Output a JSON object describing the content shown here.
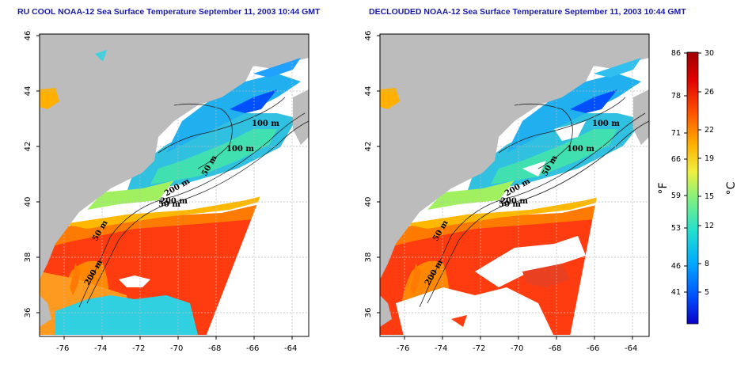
{
  "panels": [
    {
      "title": "RU COOL NOAA-12 Sea Surface Temperature September 11, 2003 10:44 GMT",
      "contour_labels": [
        "100 m",
        "100 m",
        "50 m",
        "200 m",
        "50 m",
        "200 m",
        "50 m",
        "200 m"
      ]
    },
    {
      "title": "DECLOUDED NOAA-12 Sea Surface Temperature September 11, 2003 10:44 GMT",
      "contour_labels": [
        "100 m",
        "100 m",
        "50 m",
        "200 m",
        "50 m",
        "200 m",
        "50 m",
        "200 m"
      ]
    }
  ],
  "axes": {
    "x_ticks": [
      "-76",
      "-74",
      "-72",
      "-70",
      "-68",
      "-66",
      "-64"
    ],
    "y_ticks": [
      "36",
      "38",
      "40",
      "42",
      "44",
      "46"
    ]
  },
  "colorbar": {
    "fahrenheit_label": "°F",
    "celsius_label": "°C",
    "fahrenheit_ticks": [
      "86",
      "78",
      "71",
      "66",
      "59",
      "53",
      "46",
      "41"
    ],
    "celsius_ticks": [
      "30",
      "26",
      "22",
      "19",
      "15",
      "12",
      "8",
      "5"
    ],
    "min_c": 2,
    "max_c": 30,
    "colors": [
      "#0a00c8",
      "#0050ff",
      "#00a8ff",
      "#20e0d0",
      "#80f080",
      "#f0f040",
      "#ffb000",
      "#ff5000",
      "#e00000",
      "#a00000"
    ]
  },
  "colors": {
    "land": "#bcbcbc",
    "title": "#1a1aa8",
    "grid": "#bbbbbb"
  }
}
